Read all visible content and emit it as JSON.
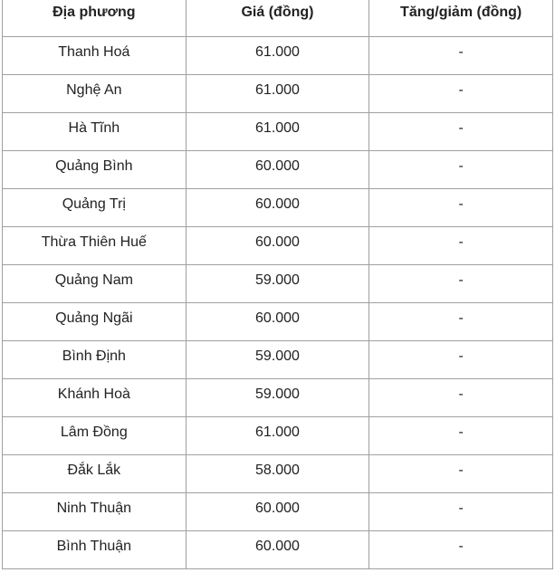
{
  "table": {
    "headers": [
      "Địa phương",
      "Giá (đồng)",
      "Tăng/giảm (đồng)"
    ],
    "rows": [
      [
        "Thanh Hoá",
        "61.000",
        "-"
      ],
      [
        "Nghệ An",
        "61.000",
        "-"
      ],
      [
        "Hà Tĩnh",
        "61.000",
        "-"
      ],
      [
        "Quảng Bình",
        "60.000",
        "-"
      ],
      [
        "Quảng Trị",
        "60.000",
        "-"
      ],
      [
        "Thừa Thiên Huế",
        "60.000",
        "-"
      ],
      [
        "Quảng Nam",
        "59.000",
        "-"
      ],
      [
        "Quảng Ngãi",
        "60.000",
        "-"
      ],
      [
        "Bình Định",
        "59.000",
        "-"
      ],
      [
        "Khánh Hoà",
        "59.000",
        "-"
      ],
      [
        "Lâm Đồng",
        "61.000",
        "-"
      ],
      [
        "Đắk Lắk",
        "58.000",
        "-"
      ],
      [
        "Ninh Thuận",
        "60.000",
        "-"
      ],
      [
        "Bình Thuận",
        "60.000",
        "-"
      ]
    ]
  }
}
